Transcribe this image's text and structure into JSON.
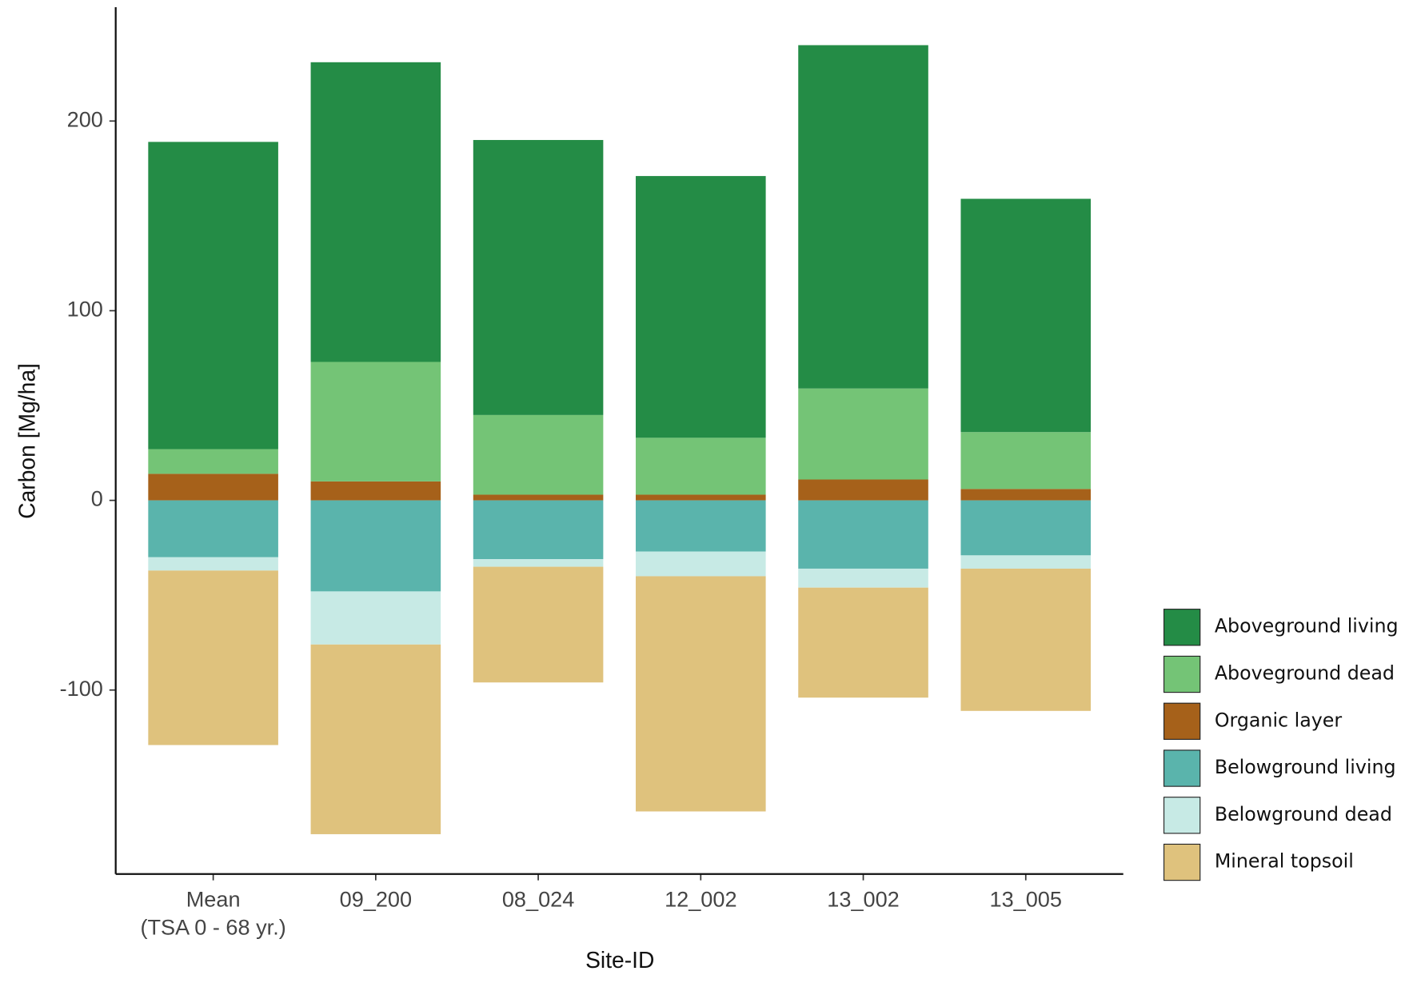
{
  "chart_data": {
    "type": "bar",
    "stacked": true,
    "x_label": "Site-ID",
    "y_label": "Carbon [Mg/ha]",
    "categories": [
      "Mean\n(TSA 0 - 68 yr.)",
      "09_200",
      "08_024",
      "12_002",
      "13_002",
      "13_005"
    ],
    "series": [
      {
        "name": "Aboveground living",
        "color": "#248c46",
        "values": [
          162,
          158,
          145,
          138,
          181,
          123
        ]
      },
      {
        "name": "Aboveground dead",
        "color": "#74c476",
        "values": [
          13,
          63,
          42,
          30,
          48,
          30
        ]
      },
      {
        "name": "Organic layer",
        "color": "#a6611a",
        "values": [
          14,
          10,
          3,
          3,
          11,
          6
        ]
      },
      {
        "name": "Belowground living",
        "color": "#5ab4ac",
        "values": [
          -30,
          -48,
          -31,
          -27,
          -36,
          -29
        ]
      },
      {
        "name": "Belowground dead",
        "color": "#c7eae5",
        "values": [
          -7,
          -28,
          -4,
          -13,
          -10,
          -7
        ]
      },
      {
        "name": "Mineral topsoil",
        "color": "#dfc27d",
        "values": [
          -92,
          -100,
          -61,
          -124,
          -58,
          -75
        ]
      }
    ],
    "stack_order": [
      "Organic layer",
      "Aboveground dead",
      "Aboveground living"
    ],
    "ylim": [
      -197,
      260
    ],
    "yticks": [
      -100,
      0,
      100,
      200
    ],
    "grid": false,
    "legend": "right"
  }
}
